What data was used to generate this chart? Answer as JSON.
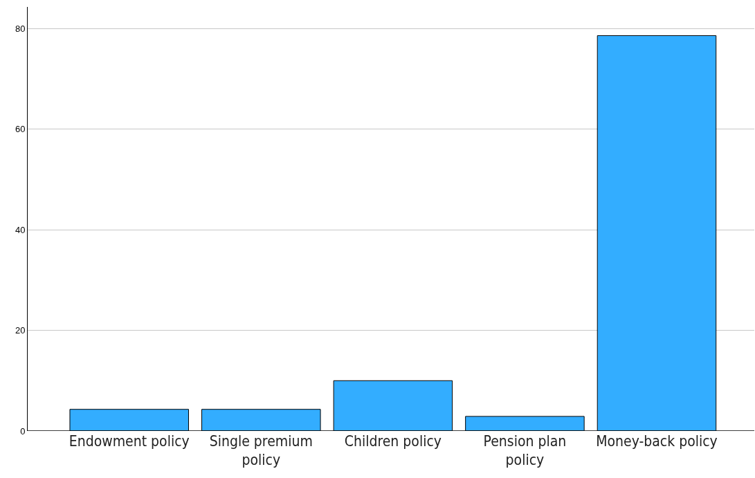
{
  "chart_data": {
    "type": "bar",
    "categories": [
      "Endowment policy",
      "Single premium policy",
      "Children policy",
      "Pension plan policy",
      "Money-back policy"
    ],
    "values": [
      4.3,
      4.3,
      10.0,
      2.9,
      78.6
    ],
    "color": "#33adff",
    "ylim": [
      0,
      84.3
    ],
    "yticks": [
      0,
      20,
      40,
      60,
      80
    ],
    "grid": "y"
  }
}
